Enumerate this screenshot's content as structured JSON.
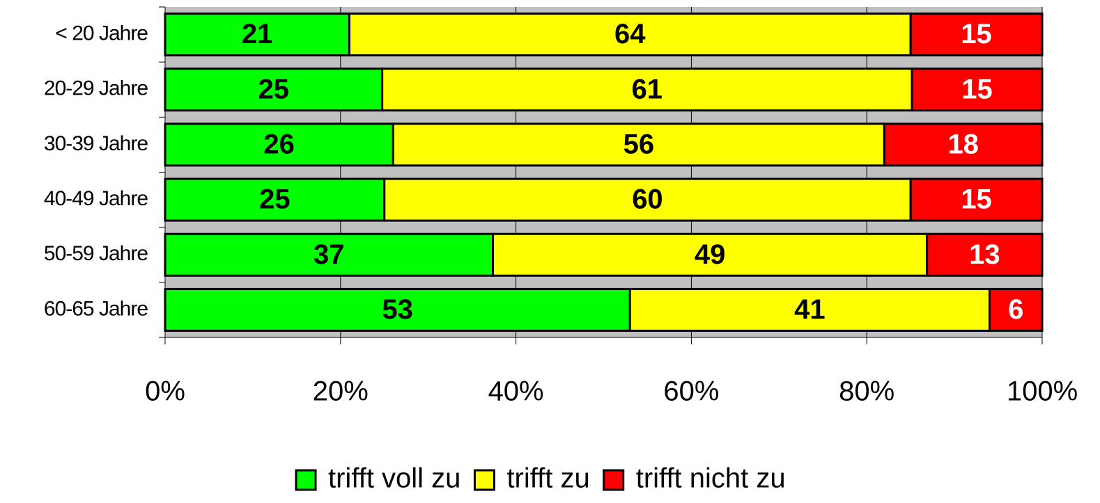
{
  "chart_data": {
    "type": "bar",
    "orientation": "horizontal",
    "stacking": "percent",
    "categories": [
      "< 20 Jahre",
      "20-29 Jahre",
      "30-39 Jahre",
      "40-49 Jahre",
      "50-59 Jahre",
      "60-65 Jahre"
    ],
    "series": [
      {
        "name": "trifft voll zu",
        "color": "#00ff00",
        "label_color": "#000000",
        "values": [
          21,
          25,
          26,
          25,
          37,
          53
        ]
      },
      {
        "name": "trifft zu",
        "color": "#ffff00",
        "label_color": "#000000",
        "values": [
          64,
          61,
          56,
          60,
          49,
          41
        ]
      },
      {
        "name": "trifft nicht zu",
        "color": "#ff0000",
        "label_color": "#ffffff",
        "values": [
          15,
          15,
          18,
          15,
          13,
          6
        ]
      }
    ],
    "xlim": [
      0,
      100
    ],
    "xticks": [
      {
        "value": 0,
        "label": "0%"
      },
      {
        "value": 20,
        "label": "20%"
      },
      {
        "value": 40,
        "label": "40%"
      },
      {
        "value": 60,
        "label": "60%"
      },
      {
        "value": 80,
        "label": "80%"
      },
      {
        "value": 100,
        "label": "100%"
      }
    ],
    "grid": true,
    "legend": "bottom"
  }
}
